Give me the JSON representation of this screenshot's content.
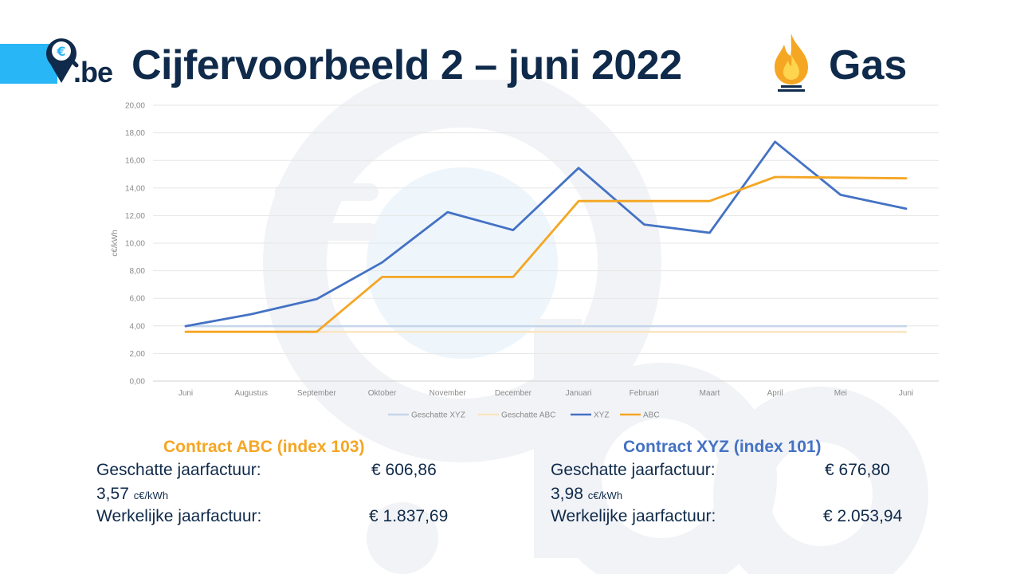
{
  "header": {
    "logo_text": ".be",
    "title": "Cijfervoorbeeld 2 – juni 2022",
    "subject": "Gas"
  },
  "colors": {
    "accent_bar": "#29b6f6",
    "navy": "#0f2a4a",
    "xyz": "#4472c4",
    "abc": "#f5a623",
    "est_xyz": "#c5d5ea",
    "est_abc": "#fae5c1"
  },
  "icons": {
    "logo": "euro-pin-icon",
    "subject": "gas-flame-icon"
  },
  "chart_data": {
    "type": "line",
    "categories": [
      "Juni",
      "Augustus",
      "September",
      "Oktober",
      "November",
      "December",
      "Januari",
      "Februari",
      "Maart",
      "April",
      "Mei",
      "Juni"
    ],
    "ylabel": "c€/kWh",
    "ylim": [
      0,
      20
    ],
    "yticks": [
      "0,00",
      "2,00",
      "4,00",
      "6,00",
      "8,00",
      "10,00",
      "12,00",
      "14,00",
      "16,00",
      "18,00",
      "20,00"
    ],
    "grid": true,
    "legend_position": "bottom",
    "series": [
      {
        "name": "Geschatte XYZ",
        "color": "#c5d5ea",
        "values": [
          3.98,
          3.98,
          3.98,
          3.98,
          3.98,
          3.98,
          3.98,
          3.98,
          3.98,
          3.98,
          3.98,
          3.98
        ]
      },
      {
        "name": "Geschatte ABC",
        "color": "#fae5c1",
        "values": [
          3.57,
          3.57,
          3.57,
          3.57,
          3.57,
          3.57,
          3.57,
          3.57,
          3.57,
          3.57,
          3.57,
          3.57
        ]
      },
      {
        "name": "XYZ",
        "color": "#4472c4",
        "values": [
          3.98,
          4.85,
          5.95,
          8.6,
          12.25,
          10.95,
          15.45,
          11.35,
          10.75,
          17.35,
          13.5,
          12.5
        ]
      },
      {
        "name": "ABC",
        "color": "#f5a623",
        "values": [
          3.57,
          3.57,
          3.57,
          7.55,
          7.55,
          7.55,
          13.05,
          13.05,
          13.05,
          14.8,
          14.75,
          14.7
        ]
      }
    ]
  },
  "contracts": {
    "abc": {
      "title": "Contract ABC (index 103)",
      "est_label": "Geschatte jaarfactuur:",
      "est_value": "€ 606,86",
      "rate": "3,57",
      "rate_unit": "c€/kWh",
      "real_label": "Werkelijke jaarfactuur:",
      "real_value": "€ 1.837,69"
    },
    "xyz": {
      "title": "Contract XYZ (index 101)",
      "est_label": "Geschatte jaarfactuur:",
      "est_value": "€ 676,80",
      "rate": "3,98",
      "rate_unit": "c€/kWh",
      "real_label": "Werkelijke jaarfactuur:",
      "real_value": "€ 2.053,94"
    }
  }
}
